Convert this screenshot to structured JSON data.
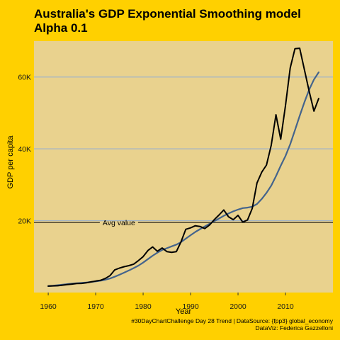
{
  "colors": {
    "background": "#FFD000",
    "panel": "#E9D28E",
    "grid": "#9FB3C8",
    "actual_line": "#000000",
    "smoothed_line": "#44648C",
    "avg_line": "#000000"
  },
  "chart_data": {
    "type": "line",
    "title_line1": "Australia's GDP Exponential Smoothing model",
    "title_line2": "Alpha 0.1",
    "xlabel": "Year",
    "ylabel": "GDP per capita",
    "xlim": [
      1957,
      2020
    ],
    "ylim": [
      0,
      70000
    ],
    "x_ticks": [
      1960,
      1970,
      1980,
      1990,
      2000,
      2010
    ],
    "x_tick_labels": [
      "1960",
      "1970",
      "1980",
      "1990",
      "2000",
      "2010"
    ],
    "y_ticks": [
      20000,
      40000,
      60000
    ],
    "y_tick_labels": [
      "20K",
      "40K",
      "60K"
    ],
    "y_grid": true,
    "legend": "none",
    "avg_value": 19500,
    "avg_label": "Avg value",
    "caption_line1": "#30DayChartChallenge Day 28 Trend | DataSource: {fpp3} global_economy",
    "caption_line2": "DataViz: Federica Gazzelloni",
    "x": [
      1960,
      1961,
      1962,
      1963,
      1964,
      1965,
      1966,
      1967,
      1968,
      1969,
      1970,
      1971,
      1972,
      1973,
      1974,
      1975,
      1976,
      1977,
      1978,
      1979,
      1980,
      1981,
      1982,
      1983,
      1984,
      1985,
      1986,
      1987,
      1988,
      1989,
      1990,
      1991,
      1992,
      1993,
      1994,
      1995,
      1996,
      1997,
      1998,
      1999,
      2000,
      2001,
      2002,
      2003,
      2004,
      2005,
      2006,
      2007,
      2008,
      2009,
      2010,
      2011,
      2012,
      2013,
      2014,
      2015,
      2016,
      2017
    ],
    "series": [
      {
        "values": [
          1800,
          1850,
          1900,
          2050,
          2200,
          2350,
          2500,
          2550,
          2700,
          2950,
          3200,
          3400,
          3900,
          4700,
          6300,
          6800,
          7200,
          7500,
          7900,
          8900,
          10000,
          11700,
          12700,
          11500,
          12400,
          11400,
          11200,
          11400,
          14200,
          17600,
          18000,
          18600,
          18400,
          17800,
          18800,
          20300,
          21600,
          23000,
          21100,
          20300,
          21500,
          19600,
          20200,
          23400,
          30500,
          33500,
          35500,
          41000,
          49500,
          42700,
          52000,
          62500,
          67900,
          68000,
          62000,
          56000,
          50500,
          54000
        ],
        "color": "#000000"
      },
      {
        "values": [
          1800,
          1900,
          2050,
          2200,
          2350,
          2500,
          2600,
          2700,
          2800,
          2950,
          3100,
          3300,
          3550,
          3900,
          4400,
          4950,
          5550,
          6150,
          6800,
          7500,
          8350,
          9300,
          10250,
          11100,
          11850,
          12350,
          12850,
          13350,
          14050,
          15000,
          15950,
          16850,
          17650,
          18400,
          19150,
          19900,
          20600,
          21350,
          22000,
          22600,
          23100,
          23500,
          23650,
          23900,
          24650,
          26050,
          27750,
          29750,
          32400,
          35300,
          38000,
          41300,
          45200,
          49200,
          53000,
          56500,
          59300,
          61300
        ],
        "color": "#44648C"
      }
    ]
  }
}
